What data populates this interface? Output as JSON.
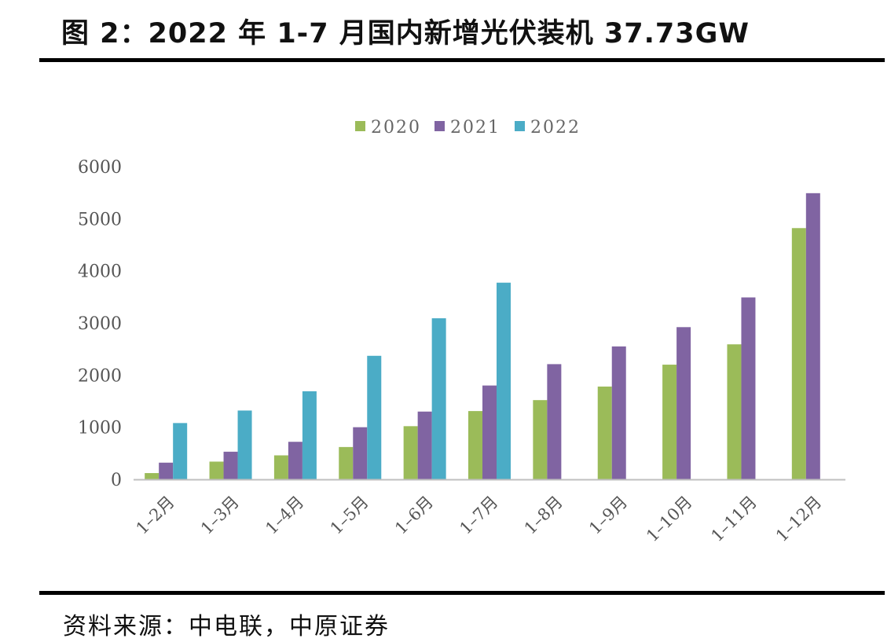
{
  "header": {
    "title": "图 2：2022 年 1-7 月国内新增光伏装机 37.73GW"
  },
  "footer": {
    "source": "资料来源：中电联，中原证券"
  },
  "chart_data": {
    "type": "bar",
    "categories": [
      "1–2月",
      "1–3月",
      "1–4月",
      "1–5月",
      "1–6月",
      "1–7月",
      "1–8月",
      "1–9月",
      "1–10月",
      "1–11月",
      "1–12月"
    ],
    "series": [
      {
        "name": "2020",
        "color": "#9bbb59",
        "values": [
          120,
          340,
          460,
          620,
          1020,
          1310,
          1520,
          1780,
          2200,
          2590,
          4820
        ]
      },
      {
        "name": "2021",
        "color": "#8064a2",
        "values": [
          320,
          530,
          720,
          1000,
          1300,
          1800,
          2210,
          2550,
          2920,
          3490,
          5490
        ]
      },
      {
        "name": "2022",
        "color": "#4bacc6",
        "values": [
          1080,
          1320,
          1690,
          2370,
          3090,
          3773,
          null,
          null,
          null,
          null,
          null
        ]
      }
    ],
    "yticks": [
      0,
      1000,
      2000,
      3000,
      4000,
      5000,
      6000
    ],
    "ylim": [
      0,
      6000
    ],
    "legend_position": "top-center",
    "grid": false
  }
}
